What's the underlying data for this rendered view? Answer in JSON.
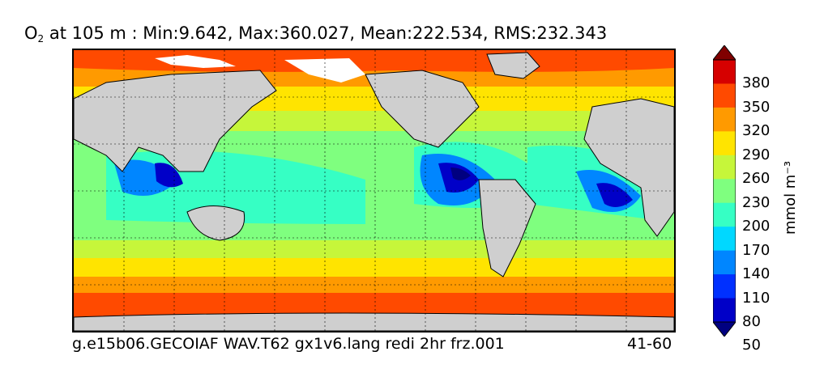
{
  "title": {
    "var": "O",
    "sub": "2",
    "rest": " at 105 m : Min:9.642, Max:360.027, Mean:222.534, RMS:232.343"
  },
  "footer": {
    "left": "g.e15b06.GECOIAF WAV.T62 gx1v6.lang redi 2hr frz.001",
    "right": "41-60"
  },
  "colorbar": {
    "unit": "mmol m⁻³",
    "ticks": [
      "380",
      "350",
      "320",
      "290",
      "260",
      "230",
      "200",
      "170",
      "140",
      "110",
      "80",
      "50"
    ],
    "colors_top_to_bottom": [
      "#800000",
      "#d60000",
      "#ff4a00",
      "#ff9a00",
      "#ffe400",
      "#c6f63a",
      "#7fff7f",
      "#36ffc4",
      "#00d8ff",
      "#0086ff",
      "#0030ff",
      "#0000c8",
      "#000080"
    ]
  },
  "land_color": "#cfcfcf",
  "ice_color": "#ffffff"
}
